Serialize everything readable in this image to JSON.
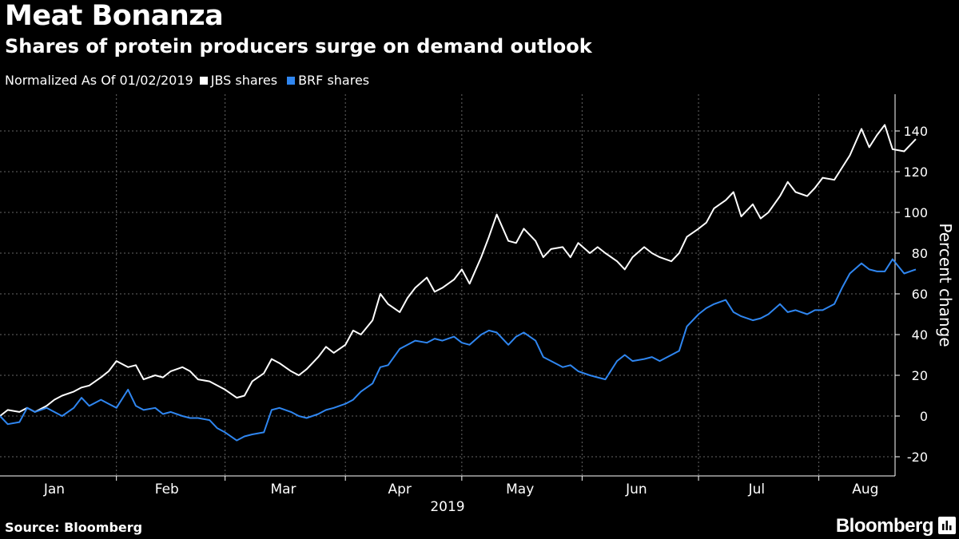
{
  "header": {
    "title": "Meat Bonanza",
    "subtitle": "Shares of protein producers surge on demand outlook"
  },
  "legend": {
    "note": "Normalized As Of 01/02/2019",
    "items": [
      {
        "label": "JBS shares",
        "color": "#ffffff"
      },
      {
        "label": "BRF shares",
        "color": "#2f86f0"
      }
    ]
  },
  "footer": {
    "source": "Source: Bloomberg",
    "brand": "Bloomberg"
  },
  "chart_data": {
    "type": "line",
    "xlabel": "2019",
    "ylabel": "Percent change",
    "x_ticks": [
      "Jan",
      "Feb",
      "Mar",
      "Apr",
      "May",
      "Jun",
      "Jul",
      "Aug"
    ],
    "y_ticks": [
      -20,
      0,
      20,
      40,
      60,
      80,
      100,
      120,
      140
    ],
    "ylim": [
      -30,
      158
    ],
    "xlim": [
      "2019-01-02",
      "2019-08-19"
    ],
    "y_axis_position": "right",
    "grid": true,
    "colors": {
      "background": "#000000",
      "grid": "#666666",
      "axis": "#ffffff"
    },
    "series": [
      {
        "name": "JBS shares",
        "color": "#ffffff",
        "points": [
          [
            "2019-01-02",
            0
          ],
          [
            "2019-01-04",
            3
          ],
          [
            "2019-01-07",
            2
          ],
          [
            "2019-01-09",
            4
          ],
          [
            "2019-01-11",
            2
          ],
          [
            "2019-01-14",
            5
          ],
          [
            "2019-01-16",
            8
          ],
          [
            "2019-01-18",
            10
          ],
          [
            "2019-01-21",
            12
          ],
          [
            "2019-01-23",
            14
          ],
          [
            "2019-01-25",
            15
          ],
          [
            "2019-01-28",
            19
          ],
          [
            "2019-01-30",
            22
          ],
          [
            "2019-02-01",
            27
          ],
          [
            "2019-02-04",
            24
          ],
          [
            "2019-02-06",
            25
          ],
          [
            "2019-02-08",
            18
          ],
          [
            "2019-02-11",
            20
          ],
          [
            "2019-02-13",
            19
          ],
          [
            "2019-02-15",
            22
          ],
          [
            "2019-02-18",
            24
          ],
          [
            "2019-02-20",
            22
          ],
          [
            "2019-02-22",
            18
          ],
          [
            "2019-02-25",
            17
          ],
          [
            "2019-02-27",
            15
          ],
          [
            "2019-03-01",
            13
          ],
          [
            "2019-03-04",
            9
          ],
          [
            "2019-03-06",
            10
          ],
          [
            "2019-03-08",
            17
          ],
          [
            "2019-03-11",
            21
          ],
          [
            "2019-03-13",
            28
          ],
          [
            "2019-03-15",
            26
          ],
          [
            "2019-03-18",
            22
          ],
          [
            "2019-03-20",
            20
          ],
          [
            "2019-03-22",
            23
          ],
          [
            "2019-03-25",
            29
          ],
          [
            "2019-03-27",
            34
          ],
          [
            "2019-03-29",
            31
          ],
          [
            "2019-04-01",
            35
          ],
          [
            "2019-04-03",
            42
          ],
          [
            "2019-04-05",
            40
          ],
          [
            "2019-04-08",
            47
          ],
          [
            "2019-04-10",
            60
          ],
          [
            "2019-04-12",
            55
          ],
          [
            "2019-04-15",
            51
          ],
          [
            "2019-04-17",
            58
          ],
          [
            "2019-04-19",
            63
          ],
          [
            "2019-04-22",
            68
          ],
          [
            "2019-04-24",
            61
          ],
          [
            "2019-04-26",
            63
          ],
          [
            "2019-04-29",
            67
          ],
          [
            "2019-05-01",
            72
          ],
          [
            "2019-05-03",
            65
          ],
          [
            "2019-05-06",
            78
          ],
          [
            "2019-05-08",
            88
          ],
          [
            "2019-05-10",
            99
          ],
          [
            "2019-05-13",
            86
          ],
          [
            "2019-05-15",
            85
          ],
          [
            "2019-05-17",
            92
          ],
          [
            "2019-05-20",
            86
          ],
          [
            "2019-05-22",
            78
          ],
          [
            "2019-05-24",
            82
          ],
          [
            "2019-05-27",
            83
          ],
          [
            "2019-05-29",
            78
          ],
          [
            "2019-05-31",
            85
          ],
          [
            "2019-06-03",
            80
          ],
          [
            "2019-06-05",
            83
          ],
          [
            "2019-06-07",
            80
          ],
          [
            "2019-06-10",
            76
          ],
          [
            "2019-06-12",
            72
          ],
          [
            "2019-06-14",
            78
          ],
          [
            "2019-06-17",
            83
          ],
          [
            "2019-06-19",
            80
          ],
          [
            "2019-06-21",
            78
          ],
          [
            "2019-06-24",
            76
          ],
          [
            "2019-06-26",
            80
          ],
          [
            "2019-06-28",
            88
          ],
          [
            "2019-07-01",
            92
          ],
          [
            "2019-07-03",
            95
          ],
          [
            "2019-07-05",
            102
          ],
          [
            "2019-07-08",
            106
          ],
          [
            "2019-07-10",
            110
          ],
          [
            "2019-07-12",
            98
          ],
          [
            "2019-07-15",
            104
          ],
          [
            "2019-07-17",
            97
          ],
          [
            "2019-07-19",
            100
          ],
          [
            "2019-07-22",
            108
          ],
          [
            "2019-07-24",
            115
          ],
          [
            "2019-07-26",
            110
          ],
          [
            "2019-07-29",
            108
          ],
          [
            "2019-07-31",
            112
          ],
          [
            "2019-08-02",
            117
          ],
          [
            "2019-08-05",
            116
          ],
          [
            "2019-08-07",
            122
          ],
          [
            "2019-08-09",
            128
          ],
          [
            "2019-08-12",
            141
          ],
          [
            "2019-08-14",
            132
          ],
          [
            "2019-08-16",
            138
          ],
          [
            "2019-08-18",
            143
          ],
          [
            "2019-08-20",
            131
          ],
          [
            "2019-08-23",
            130
          ],
          [
            "2019-08-26",
            136
          ]
        ]
      },
      {
        "name": "BRF shares",
        "color": "#2f86f0",
        "points": [
          [
            "2019-01-02",
            0
          ],
          [
            "2019-01-04",
            -4
          ],
          [
            "2019-01-07",
            -3
          ],
          [
            "2019-01-09",
            4
          ],
          [
            "2019-01-11",
            2
          ],
          [
            "2019-01-14",
            4
          ],
          [
            "2019-01-16",
            2
          ],
          [
            "2019-01-18",
            0
          ],
          [
            "2019-01-21",
            4
          ],
          [
            "2019-01-23",
            9
          ],
          [
            "2019-01-25",
            5
          ],
          [
            "2019-01-28",
            8
          ],
          [
            "2019-01-30",
            6
          ],
          [
            "2019-02-01",
            4
          ],
          [
            "2019-02-04",
            13
          ],
          [
            "2019-02-06",
            5
          ],
          [
            "2019-02-08",
            3
          ],
          [
            "2019-02-11",
            4
          ],
          [
            "2019-02-13",
            1
          ],
          [
            "2019-02-15",
            2
          ],
          [
            "2019-02-18",
            0
          ],
          [
            "2019-02-20",
            -1
          ],
          [
            "2019-02-22",
            -1
          ],
          [
            "2019-02-25",
            -2
          ],
          [
            "2019-02-27",
            -6
          ],
          [
            "2019-03-01",
            -8
          ],
          [
            "2019-03-04",
            -12
          ],
          [
            "2019-03-06",
            -10
          ],
          [
            "2019-03-08",
            -9
          ],
          [
            "2019-03-11",
            -8
          ],
          [
            "2019-03-13",
            3
          ],
          [
            "2019-03-15",
            4
          ],
          [
            "2019-03-18",
            2
          ],
          [
            "2019-03-20",
            0
          ],
          [
            "2019-03-22",
            -1
          ],
          [
            "2019-03-25",
            1
          ],
          [
            "2019-03-27",
            3
          ],
          [
            "2019-03-29",
            4
          ],
          [
            "2019-04-01",
            6
          ],
          [
            "2019-04-03",
            8
          ],
          [
            "2019-04-05",
            12
          ],
          [
            "2019-04-08",
            16
          ],
          [
            "2019-04-10",
            24
          ],
          [
            "2019-04-12",
            25
          ],
          [
            "2019-04-15",
            33
          ],
          [
            "2019-04-17",
            35
          ],
          [
            "2019-04-19",
            37
          ],
          [
            "2019-04-22",
            36
          ],
          [
            "2019-04-24",
            38
          ],
          [
            "2019-04-26",
            37
          ],
          [
            "2019-04-29",
            39
          ],
          [
            "2019-05-01",
            36
          ],
          [
            "2019-05-03",
            35
          ],
          [
            "2019-05-06",
            40
          ],
          [
            "2019-05-08",
            42
          ],
          [
            "2019-05-10",
            41
          ],
          [
            "2019-05-13",
            35
          ],
          [
            "2019-05-15",
            39
          ],
          [
            "2019-05-17",
            41
          ],
          [
            "2019-05-20",
            37
          ],
          [
            "2019-05-22",
            29
          ],
          [
            "2019-05-24",
            27
          ],
          [
            "2019-05-27",
            24
          ],
          [
            "2019-05-29",
            25
          ],
          [
            "2019-05-31",
            22
          ],
          [
            "2019-06-03",
            20
          ],
          [
            "2019-06-05",
            19
          ],
          [
            "2019-06-07",
            18
          ],
          [
            "2019-06-10",
            27
          ],
          [
            "2019-06-12",
            30
          ],
          [
            "2019-06-14",
            27
          ],
          [
            "2019-06-17",
            28
          ],
          [
            "2019-06-19",
            29
          ],
          [
            "2019-06-21",
            27
          ],
          [
            "2019-06-24",
            30
          ],
          [
            "2019-06-26",
            32
          ],
          [
            "2019-06-28",
            44
          ],
          [
            "2019-07-01",
            50
          ],
          [
            "2019-07-03",
            53
          ],
          [
            "2019-07-05",
            55
          ],
          [
            "2019-07-08",
            57
          ],
          [
            "2019-07-10",
            51
          ],
          [
            "2019-07-12",
            49
          ],
          [
            "2019-07-15",
            47
          ],
          [
            "2019-07-17",
            48
          ],
          [
            "2019-07-19",
            50
          ],
          [
            "2019-07-22",
            55
          ],
          [
            "2019-07-24",
            51
          ],
          [
            "2019-07-26",
            52
          ],
          [
            "2019-07-29",
            50
          ],
          [
            "2019-07-31",
            52
          ],
          [
            "2019-08-02",
            52
          ],
          [
            "2019-08-05",
            55
          ],
          [
            "2019-08-07",
            63
          ],
          [
            "2019-08-09",
            70
          ],
          [
            "2019-08-12",
            75
          ],
          [
            "2019-08-14",
            72
          ],
          [
            "2019-08-16",
            71
          ],
          [
            "2019-08-18",
            71
          ],
          [
            "2019-08-20",
            77
          ],
          [
            "2019-08-23",
            70
          ],
          [
            "2019-08-26",
            72
          ]
        ]
      }
    ]
  }
}
